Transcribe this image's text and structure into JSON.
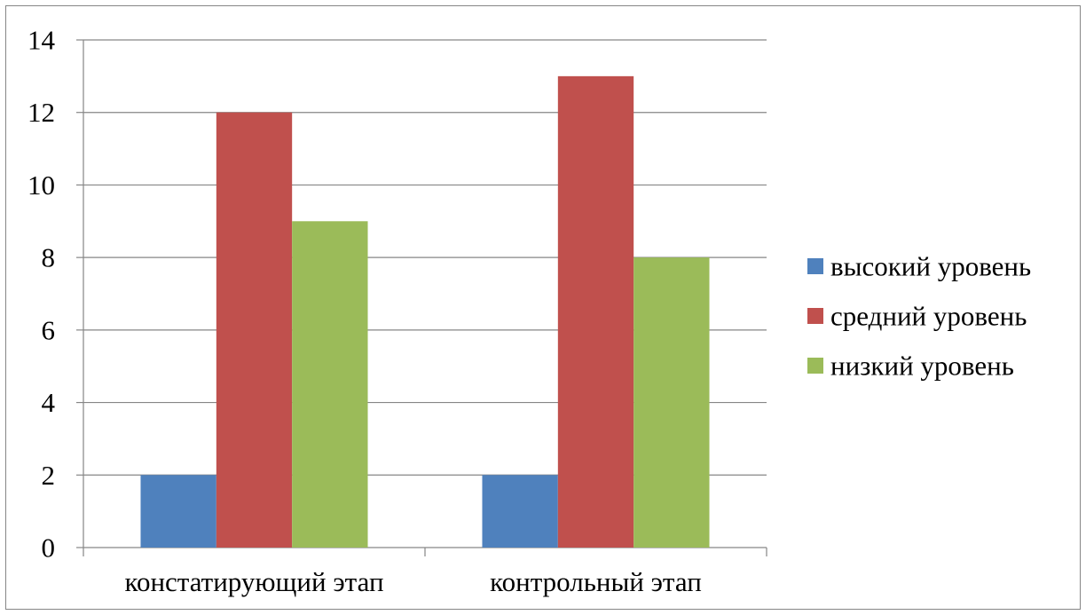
{
  "chart_data": {
    "type": "bar",
    "title": "",
    "xlabel": "",
    "ylabel": "",
    "categories": [
      "констатирующий этап",
      "контрольный этап"
    ],
    "series": [
      {
        "name": "высокий уровень",
        "values": [
          2,
          2
        ],
        "color": "#4F81BD"
      },
      {
        "name": "средний уровень",
        "values": [
          12,
          13
        ],
        "color": "#C0504D"
      },
      {
        "name": "низкий уровень",
        "values": [
          9,
          8
        ],
        "color": "#9BBB59"
      }
    ],
    "ylim": [
      0,
      14
    ],
    "yticks": [
      0,
      2,
      4,
      6,
      8,
      10,
      12,
      14
    ],
    "grid": true,
    "legend": "right"
  }
}
